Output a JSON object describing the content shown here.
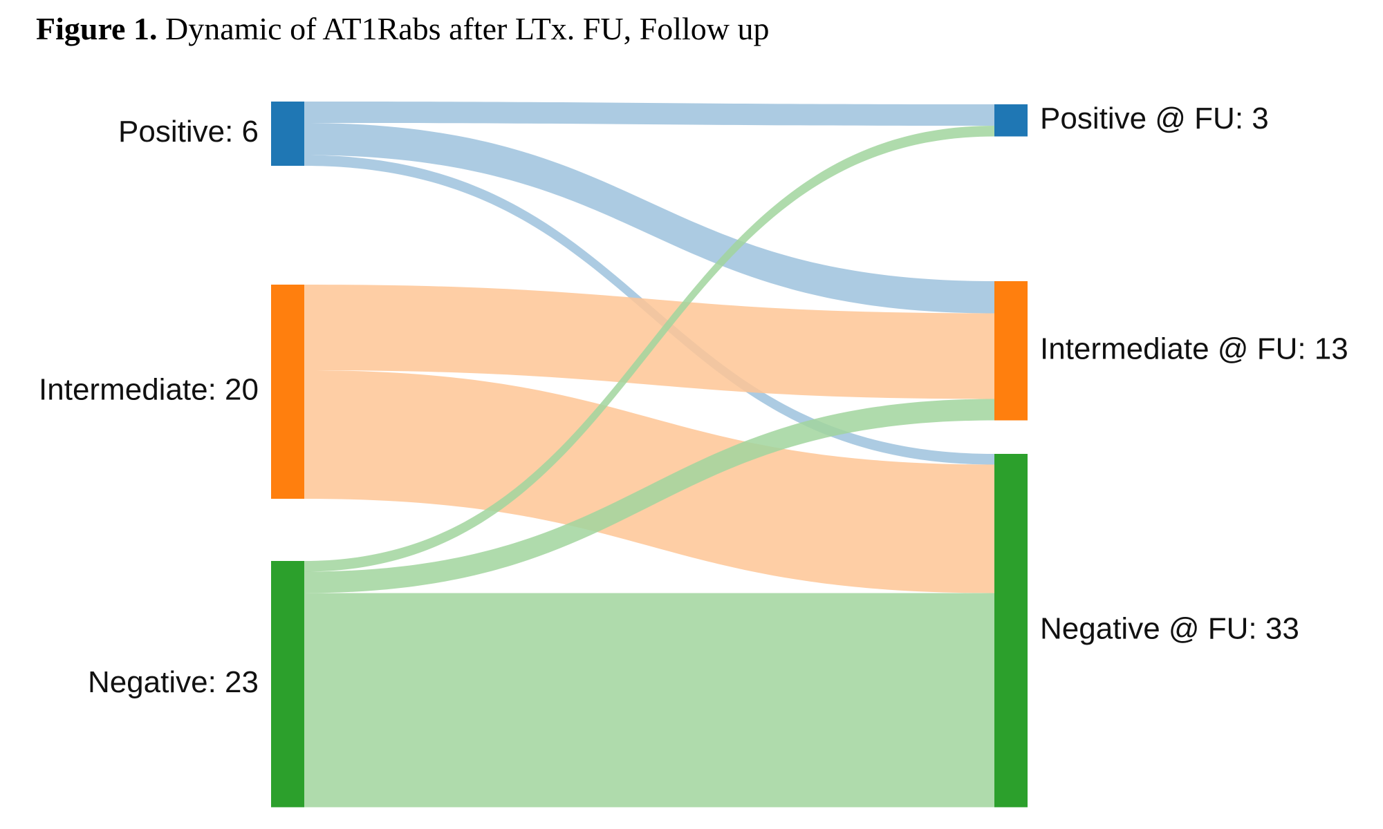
{
  "caption": {
    "label": "Figure 1.",
    "text": "Dynamic of AT1Rabs after LTx. FU, Follow up"
  },
  "sankey": {
    "sources": [
      {
        "id": "pos",
        "label": "Positive: 6",
        "value": 6,
        "color": "#1f77b4"
      },
      {
        "id": "int",
        "label": "Intermediate: 20",
        "value": 20,
        "color": "#ff7f0e"
      },
      {
        "id": "neg",
        "label": "Negative: 23",
        "value": 23,
        "color": "#2ca02c"
      }
    ],
    "targets": [
      {
        "id": "pos_fu",
        "label": "Positive @ FU: 3",
        "value": 3,
        "color": "#1f77b4"
      },
      {
        "id": "int_fu",
        "label": "Intermediate @ FU: 13",
        "value": 13,
        "color": "#ff7f0e"
      },
      {
        "id": "neg_fu",
        "label": "Negative @ FU: 33",
        "value": 33,
        "color": "#2ca02c"
      }
    ],
    "links": [
      {
        "from": "pos",
        "to": "pos_fu",
        "value": 2
      },
      {
        "from": "pos",
        "to": "int_fu",
        "value": 3
      },
      {
        "from": "pos",
        "to": "neg_fu",
        "value": 1
      },
      {
        "from": "int",
        "to": "int_fu",
        "value": 8
      },
      {
        "from": "int",
        "to": "neg_fu",
        "value": 12
      },
      {
        "from": "neg",
        "to": "pos_fu",
        "value": 1
      },
      {
        "from": "neg",
        "to": "int_fu",
        "value": 2
      },
      {
        "from": "neg",
        "to": "neg_fu",
        "value": 20
      }
    ],
    "link_colors": {
      "pos": "#9ec2dd",
      "int": "#fec595",
      "neg": "#a1d59d"
    }
  }
}
